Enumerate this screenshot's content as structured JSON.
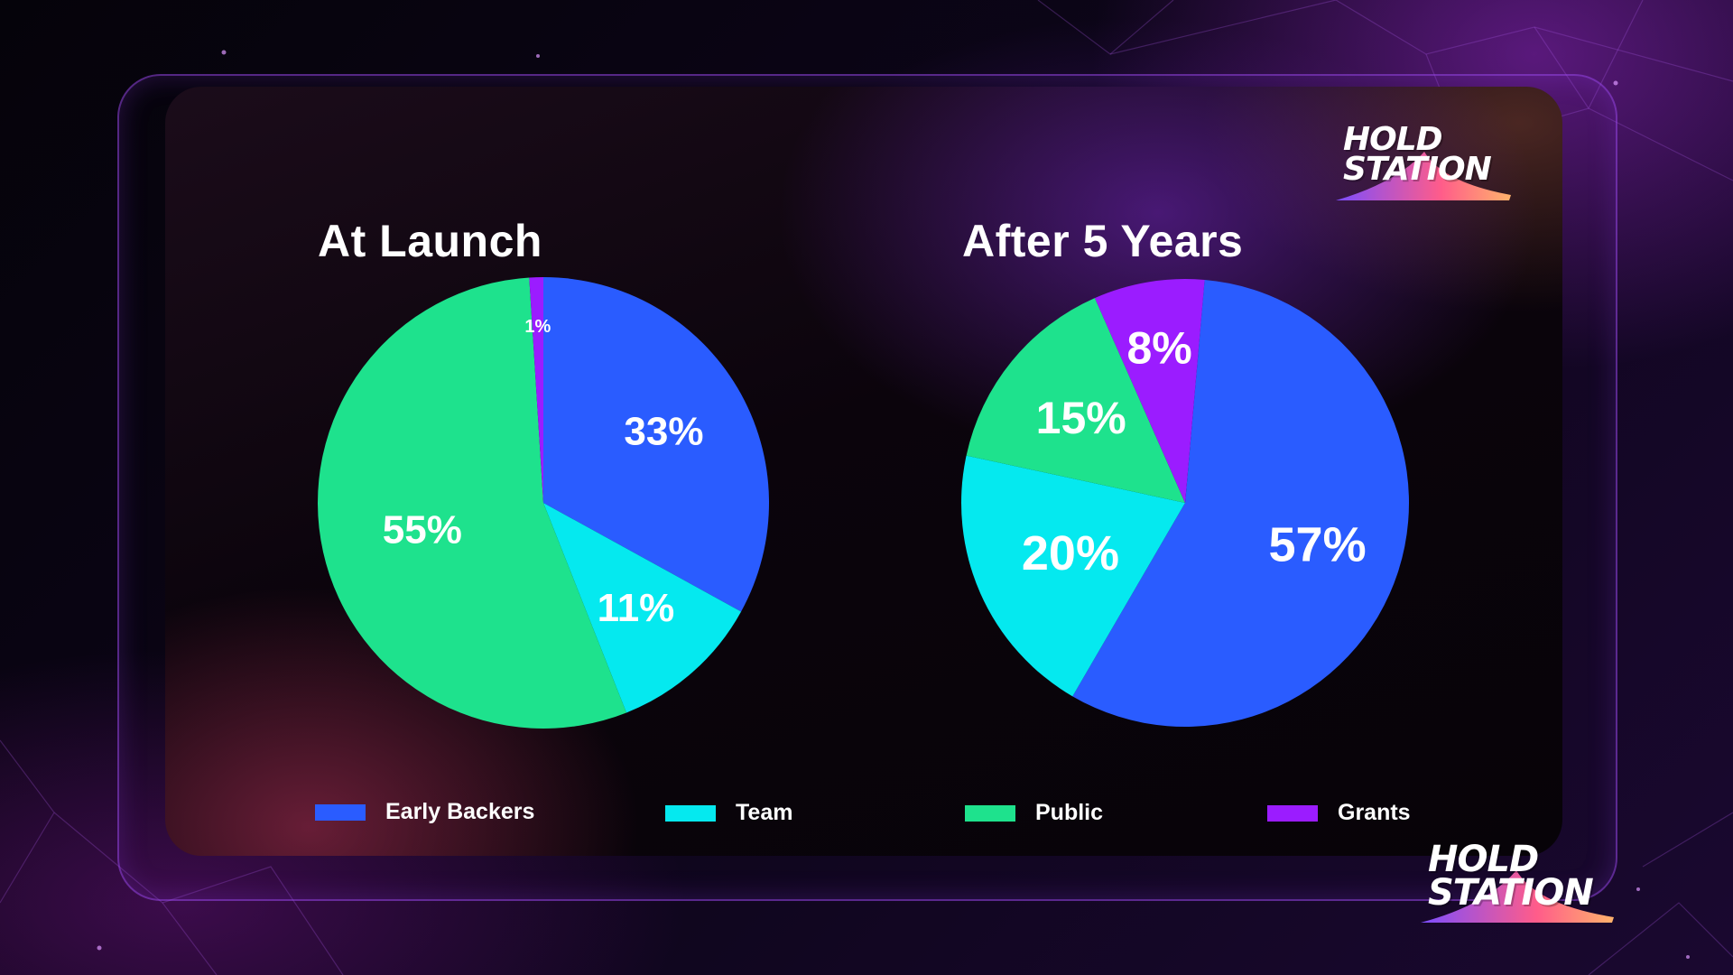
{
  "brand": {
    "logo_top": "HOLD STATION",
    "logo_bottom": "HOLD STATION",
    "accent_gradient": [
      "#7b4dff",
      "#ff5c8a",
      "#ffb36b"
    ]
  },
  "chart_data": [
    {
      "type": "pie",
      "title": "At Launch",
      "slices": [
        {
          "name": "Early Backers",
          "value": 33,
          "label": "33%",
          "color": "#2a5cff"
        },
        {
          "name": "Team",
          "value": 11,
          "label": "11%",
          "color": "#05e9ef"
        },
        {
          "name": "Public",
          "value": 55,
          "label": "55%",
          "color": "#1ee28d"
        },
        {
          "name": "Grants",
          "value": 1,
          "label": "1%",
          "color": "#9b1cff"
        }
      ]
    },
    {
      "type": "pie",
      "title": "After 5 Years",
      "slices": [
        {
          "name": "Early Backers",
          "value": 57,
          "label": "57%",
          "color": "#2a5cff"
        },
        {
          "name": "Team",
          "value": 20,
          "label": "20%",
          "color": "#05e9ef"
        },
        {
          "name": "Public",
          "value": 15,
          "label": "15%",
          "color": "#1ee28d"
        },
        {
          "name": "Grants",
          "value": 8,
          "label": "8%",
          "color": "#9b1cff"
        }
      ]
    }
  ],
  "legend": [
    {
      "label": "Early Backers",
      "color": "#2a5cff"
    },
    {
      "label": "Team",
      "color": "#05e9ef"
    },
    {
      "label": "Public",
      "color": "#1ee28d"
    },
    {
      "label": "Grants",
      "color": "#9b1cff"
    }
  ]
}
